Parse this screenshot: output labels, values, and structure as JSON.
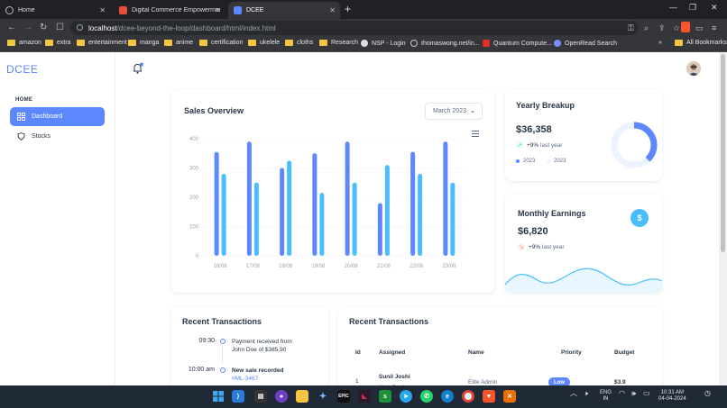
{
  "browser": {
    "tabs": [
      {
        "title": "Home",
        "active": false
      },
      {
        "title": "Digital Commerce Empowerment Ec",
        "active": false
      },
      {
        "title": "DCEE",
        "active": true
      }
    ],
    "url_host": "localhost",
    "url_path": "/dcee-beyond-the-loop/dashboard/html/index.html",
    "bookmarks": [
      "amazon",
      "extra",
      "entertainment",
      "manga",
      "anime",
      "certification",
      "ukelele",
      "cloths",
      "Research",
      "NSP - Login",
      "thomaswong.net/in...",
      "Quantum Compute...",
      "OpenRead Search"
    ],
    "all_bookmarks": "All Bookmarks"
  },
  "app": {
    "logo": "DCEE",
    "nav_header": "HOME",
    "nav": [
      {
        "label": "Dashboard",
        "active": true
      },
      {
        "label": "Stocks",
        "active": false
      }
    ]
  },
  "sales": {
    "title": "Sales Overview",
    "month": "March 2023"
  },
  "chart_data": {
    "type": "bar",
    "categories": [
      "16/08",
      "17/08",
      "18/08",
      "19/08",
      "20/08",
      "21/08",
      "22/08",
      "23/08"
    ],
    "series": [
      {
        "values": [
          355,
          390,
          300,
          350,
          390,
          180,
          355,
          390
        ],
        "color": "#5d87ff"
      },
      {
        "values": [
          280,
          250,
          325,
          215,
          250,
          310,
          280,
          250
        ],
        "color": "#49beff"
      }
    ],
    "yticks": [
      0,
      100,
      200,
      300,
      400
    ],
    "ylim": [
      0,
      400
    ],
    "grid": true
  },
  "yearly": {
    "title": "Yearly Breakup",
    "amount": "$36,358",
    "change": "+9%",
    "change_label": "last year",
    "legend": [
      "2023",
      "2023"
    ],
    "donut_fraction": 0.38
  },
  "monthly": {
    "title": "Monthly Earnings",
    "amount": "$6,820",
    "change": "+9%",
    "change_label": "last year",
    "dollar": "$"
  },
  "recent_timeline": {
    "title": "Recent Transactions",
    "items": [
      {
        "time": "09:30",
        "line1": "Payment received from",
        "line2": "John Doe of $385.90",
        "bold": false
      },
      {
        "time": "10:00 am",
        "line1": "New sale recorded",
        "line2": "#ML-3467",
        "bold": true
      }
    ]
  },
  "recent_table": {
    "title": "Recent Transactions",
    "headers": [
      "Id",
      "Assigned",
      "Name",
      "Priority",
      "Budget"
    ],
    "rows": [
      {
        "id": "1",
        "assigned": "Sunil Joshi",
        "role": "Web Designer",
        "name": "Elite Admin",
        "priority": "Low",
        "budget": "$3.9"
      }
    ]
  },
  "taskbar": {
    "lang1": "ENG",
    "lang2": "IN",
    "time": "10:31 AM",
    "date": "04-04-2024"
  }
}
